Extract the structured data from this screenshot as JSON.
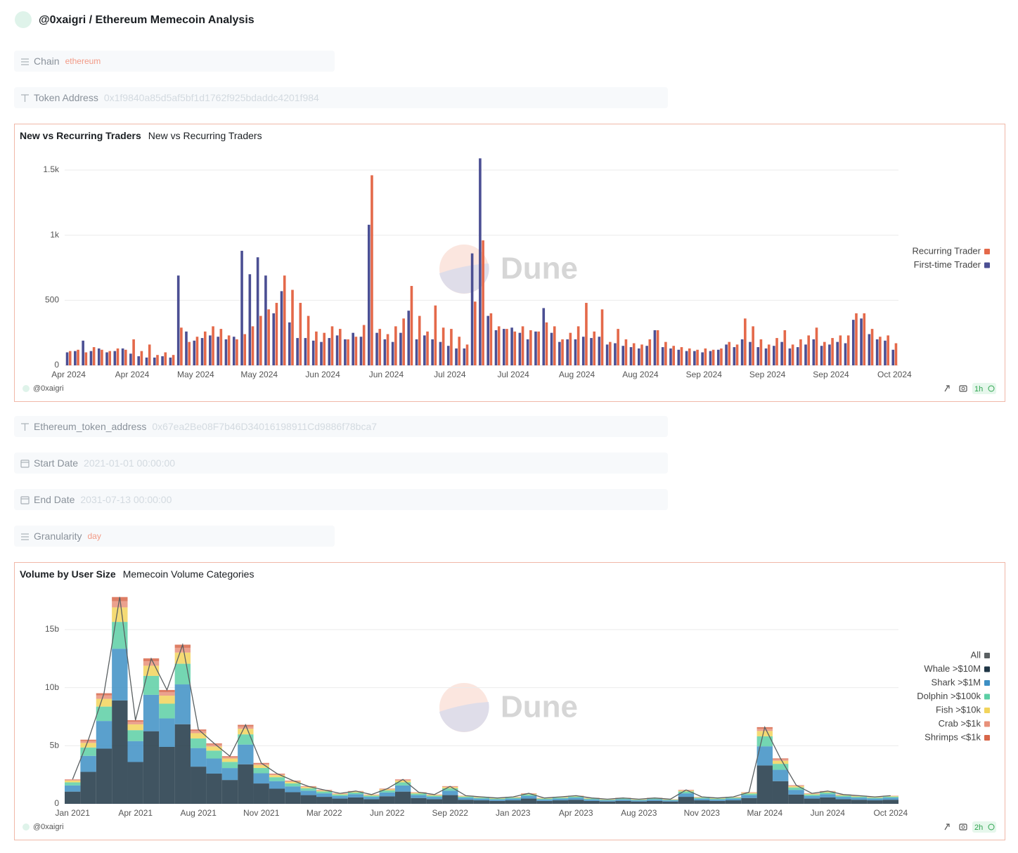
{
  "header": {
    "title": "@0xaigri / Ethereum Memecoin Analysis"
  },
  "filters": [
    {
      "label": "Chain",
      "value": "ethereum"
    },
    {
      "label": "Token Address",
      "value": "0x1f9840a85d5af5bf1d1762f925bdaddc4201f984"
    },
    {
      "label": "Ethereum_token_address",
      "value": "0x67ea2Be08F7b46D34016198911Cd9886f78bca7"
    },
    {
      "label": "Start Date",
      "value": "2021-01-01 00:00:00"
    },
    {
      "label": "End Date",
      "value": "2031-07-13 00:00:00"
    },
    {
      "label": "Granularity",
      "value": "day"
    }
  ],
  "chart_data": [
    {
      "type": "bar",
      "title": "New vs Recurring Traders",
      "subtitle": "New vs Recurring Traders",
      "watermark": "Dune",
      "author": "@0xaigri",
      "freshness": "1h",
      "grid": true,
      "legend": "right",
      "stacked": false,
      "categories": [
        "Apr 2024",
        null,
        null,
        null,
        null,
        null,
        null,
        null,
        "Apr 2024",
        null,
        null,
        null,
        null,
        null,
        null,
        null,
        "May 2024",
        null,
        null,
        null,
        null,
        null,
        null,
        null,
        "May 2024",
        null,
        null,
        null,
        null,
        null,
        null,
        null,
        "Jun 2024",
        null,
        null,
        null,
        null,
        null,
        null,
        null,
        "Jun 2024",
        null,
        null,
        null,
        null,
        null,
        null,
        null,
        "Jul 2024",
        null,
        null,
        null,
        null,
        null,
        null,
        null,
        "Jul 2024",
        null,
        null,
        null,
        null,
        null,
        null,
        null,
        "Aug 2024",
        null,
        null,
        null,
        null,
        null,
        null,
        null,
        "Aug 2024",
        null,
        null,
        null,
        null,
        null,
        null,
        null,
        "Sep 2024",
        null,
        null,
        null,
        null,
        null,
        null,
        null,
        "Sep 2024",
        null,
        null,
        null,
        null,
        null,
        null,
        null,
        "Sep 2024",
        null,
        null,
        null,
        null,
        null,
        null,
        null,
        "Oct 2024"
      ],
      "ylim": [
        0,
        1600
      ],
      "yticks": [
        0,
        500,
        {
          "value": 1000,
          "label": "1k"
        },
        {
          "value": 1500,
          "label": "1.5k"
        }
      ],
      "series": [
        {
          "name": "Recurring Trader",
          "color": "#e4694a",
          "values": [
            110,
            120,
            100,
            140,
            120,
            110,
            130,
            120,
            200,
            110,
            160,
            80,
            100,
            80,
            290,
            180,
            220,
            260,
            300,
            280,
            230,
            200,
            240,
            300,
            380,
            430,
            480,
            690,
            580,
            480,
            380,
            260,
            250,
            300,
            280,
            200,
            220,
            310,
            1460,
            280,
            240,
            300,
            360,
            610,
            380,
            260,
            460,
            290,
            280,
            220,
            160,
            490,
            960,
            400,
            300,
            280,
            260,
            300,
            270,
            260,
            330,
            300,
            200,
            250,
            300,
            480,
            260,
            430,
            180,
            280,
            200,
            170,
            160,
            200,
            270,
            180,
            150,
            140,
            130,
            120,
            130,
            120,
            130,
            180,
            160,
            360,
            300,
            200,
            160,
            210,
            270,
            160,
            200,
            230,
            290,
            180,
            210,
            230,
            230,
            400,
            400,
            280,
            220,
            230,
            170
          ]
        },
        {
          "name": "First-time Trader",
          "color": "#4b4f93",
          "values": [
            100,
            110,
            190,
            110,
            130,
            100,
            110,
            130,
            90,
            70,
            60,
            60,
            70,
            60,
            690,
            260,
            190,
            210,
            230,
            220,
            200,
            220,
            880,
            700,
            830,
            690,
            400,
            570,
            330,
            210,
            210,
            190,
            180,
            210,
            230,
            200,
            250,
            220,
            1080,
            250,
            200,
            180,
            250,
            420,
            200,
            230,
            200,
            180,
            150,
            130,
            130,
            860,
            1590,
            380,
            270,
            280,
            290,
            250,
            200,
            260,
            440,
            250,
            180,
            200,
            200,
            220,
            210,
            220,
            160,
            170,
            150,
            140,
            130,
            150,
            270,
            140,
            130,
            120,
            110,
            110,
            100,
            110,
            120,
            160,
            140,
            200,
            180,
            140,
            130,
            150,
            180,
            130,
            140,
            160,
            200,
            150,
            160,
            180,
            170,
            350,
            360,
            240,
            200,
            190,
            120
          ]
        }
      ]
    },
    {
      "type": "bar",
      "title": "Volume by User Size",
      "subtitle": "Memecoin Volume Categories",
      "watermark": "Dune",
      "author": "@0xaigri",
      "freshness": "2h",
      "grid": true,
      "legend": "right",
      "stacked": true,
      "categories": [
        "Jan 2021",
        null,
        null,
        null,
        "Apr 2021",
        null,
        null,
        null,
        "Aug 2021",
        null,
        null,
        null,
        "Nov 2021",
        null,
        null,
        null,
        "Mar 2022",
        null,
        null,
        null,
        "Jun 2022",
        null,
        null,
        null,
        "Sep 2022",
        null,
        null,
        null,
        "Jan 2023",
        null,
        null,
        null,
        "Apr 2023",
        null,
        null,
        null,
        "Aug 2023",
        null,
        null,
        null,
        "Nov 2023",
        null,
        null,
        null,
        "Mar 2024",
        null,
        null,
        null,
        "Jun 2024",
        null,
        null,
        null,
        "Oct 2024"
      ],
      "ylim": [
        0,
        18
      ],
      "yticks": [
        0,
        {
          "value": 5,
          "label": "5b"
        },
        {
          "value": 10,
          "label": "10b"
        },
        {
          "value": 15,
          "label": "15b"
        }
      ],
      "series": [
        {
          "name": "All",
          "color": "#5a6062",
          "style": "line",
          "values": [
            2.1,
            5.5,
            9.5,
            17.8,
            7.2,
            12.5,
            9.8,
            13.7,
            6.4,
            5.2,
            4.1,
            6.8,
            3.5,
            2.6,
            2.0,
            1.5,
            1.2,
            0.9,
            1.1,
            0.8,
            1.3,
            2.1,
            1.0,
            0.8,
            1.5,
            0.7,
            0.6,
            0.5,
            0.6,
            0.9,
            0.5,
            0.6,
            0.7,
            0.5,
            0.4,
            0.5,
            0.4,
            0.5,
            0.4,
            1.2,
            0.6,
            0.5,
            0.6,
            1.0,
            6.6,
            3.9,
            1.6,
            0.9,
            1.1,
            0.8,
            0.7,
            0.6,
            0.7
          ]
        },
        {
          "name": "Whale >$10M",
          "color": "#1f3645",
          "values": [
            1.05,
            2.75,
            4.75,
            8.9,
            3.6,
            6.25,
            4.9,
            6.85,
            3.2,
            2.6,
            2.05,
            3.4,
            1.75,
            1.3,
            1.0,
            0.75,
            0.6,
            0.45,
            0.55,
            0.4,
            0.65,
            1.05,
            0.5,
            0.4,
            0.75,
            0.35,
            0.3,
            0.25,
            0.3,
            0.45,
            0.25,
            0.3,
            0.35,
            0.25,
            0.2,
            0.25,
            0.2,
            0.25,
            0.2,
            0.6,
            0.3,
            0.25,
            0.3,
            0.5,
            3.3,
            1.95,
            0.8,
            0.45,
            0.55,
            0.4,
            0.35,
            0.3,
            0.35
          ]
        },
        {
          "name": "Shark >$1M",
          "color": "#3d8fc4",
          "values": [
            0.53,
            1.38,
            2.38,
            4.45,
            1.8,
            3.13,
            2.45,
            3.43,
            1.6,
            1.3,
            1.03,
            1.7,
            0.88,
            0.65,
            0.5,
            0.38,
            0.3,
            0.23,
            0.28,
            0.2,
            0.33,
            0.53,
            0.25,
            0.2,
            0.38,
            0.18,
            0.15,
            0.13,
            0.15,
            0.23,
            0.13,
            0.15,
            0.18,
            0.13,
            0.1,
            0.13,
            0.1,
            0.13,
            0.1,
            0.3,
            0.15,
            0.13,
            0.15,
            0.25,
            1.65,
            0.98,
            0.4,
            0.23,
            0.28,
            0.2,
            0.18,
            0.15,
            0.18
          ]
        },
        {
          "name": "Dolphin >$100k",
          "color": "#5ccfa5",
          "values": [
            0.27,
            0.72,
            1.24,
            2.31,
            0.94,
            1.63,
            1.27,
            1.78,
            0.83,
            0.68,
            0.53,
            0.88,
            0.46,
            0.34,
            0.26,
            0.2,
            0.16,
            0.12,
            0.14,
            0.1,
            0.17,
            0.27,
            0.13,
            0.1,
            0.2,
            0.09,
            0.08,
            0.07,
            0.08,
            0.12,
            0.07,
            0.08,
            0.09,
            0.07,
            0.05,
            0.07,
            0.05,
            0.07,
            0.05,
            0.16,
            0.08,
            0.07,
            0.08,
            0.13,
            0.86,
            0.51,
            0.21,
            0.12,
            0.14,
            0.1,
            0.09,
            0.08,
            0.09
          ]
        },
        {
          "name": "Fish >$10k",
          "color": "#f2d45c",
          "values": [
            0.15,
            0.39,
            0.67,
            1.25,
            0.5,
            0.88,
            0.69,
            0.96,
            0.45,
            0.36,
            0.29,
            0.48,
            0.25,
            0.18,
            0.14,
            0.11,
            0.08,
            0.06,
            0.08,
            0.06,
            0.09,
            0.15,
            0.07,
            0.06,
            0.11,
            0.05,
            0.04,
            0.04,
            0.04,
            0.06,
            0.04,
            0.04,
            0.05,
            0.04,
            0.03,
            0.04,
            0.03,
            0.04,
            0.03,
            0.08,
            0.04,
            0.04,
            0.04,
            0.07,
            0.46,
            0.27,
            0.11,
            0.06,
            0.08,
            0.06,
            0.05,
            0.04,
            0.05
          ]
        },
        {
          "name": "Crab >$1k",
          "color": "#e8917a",
          "values": [
            0.06,
            0.17,
            0.29,
            0.53,
            0.22,
            0.38,
            0.29,
            0.41,
            0.19,
            0.16,
            0.12,
            0.2,
            0.11,
            0.08,
            0.06,
            0.05,
            0.04,
            0.03,
            0.03,
            0.02,
            0.04,
            0.06,
            0.03,
            0.02,
            0.05,
            0.02,
            0.02,
            0.02,
            0.02,
            0.03,
            0.02,
            0.02,
            0.02,
            0.02,
            0.01,
            0.02,
            0.01,
            0.02,
            0.01,
            0.04,
            0.02,
            0.02,
            0.02,
            0.03,
            0.2,
            0.12,
            0.05,
            0.03,
            0.03,
            0.02,
            0.02,
            0.02,
            0.02
          ]
        },
        {
          "name": "Shrimps <$1k",
          "color": "#d8674a",
          "values": [
            0.04,
            0.11,
            0.19,
            0.36,
            0.14,
            0.25,
            0.2,
            0.27,
            0.13,
            0.1,
            0.08,
            0.14,
            0.07,
            0.05,
            0.04,
            0.03,
            0.02,
            0.02,
            0.02,
            0.02,
            0.03,
            0.04,
            0.02,
            0.02,
            0.03,
            0.01,
            0.01,
            0.01,
            0.01,
            0.02,
            0.01,
            0.01,
            0.01,
            0.01,
            0.01,
            0.01,
            0.01,
            0.01,
            0.01,
            0.02,
            0.01,
            0.01,
            0.01,
            0.02,
            0.13,
            0.08,
            0.03,
            0.02,
            0.02,
            0.02,
            0.01,
            0.01,
            0.01
          ]
        }
      ]
    }
  ]
}
